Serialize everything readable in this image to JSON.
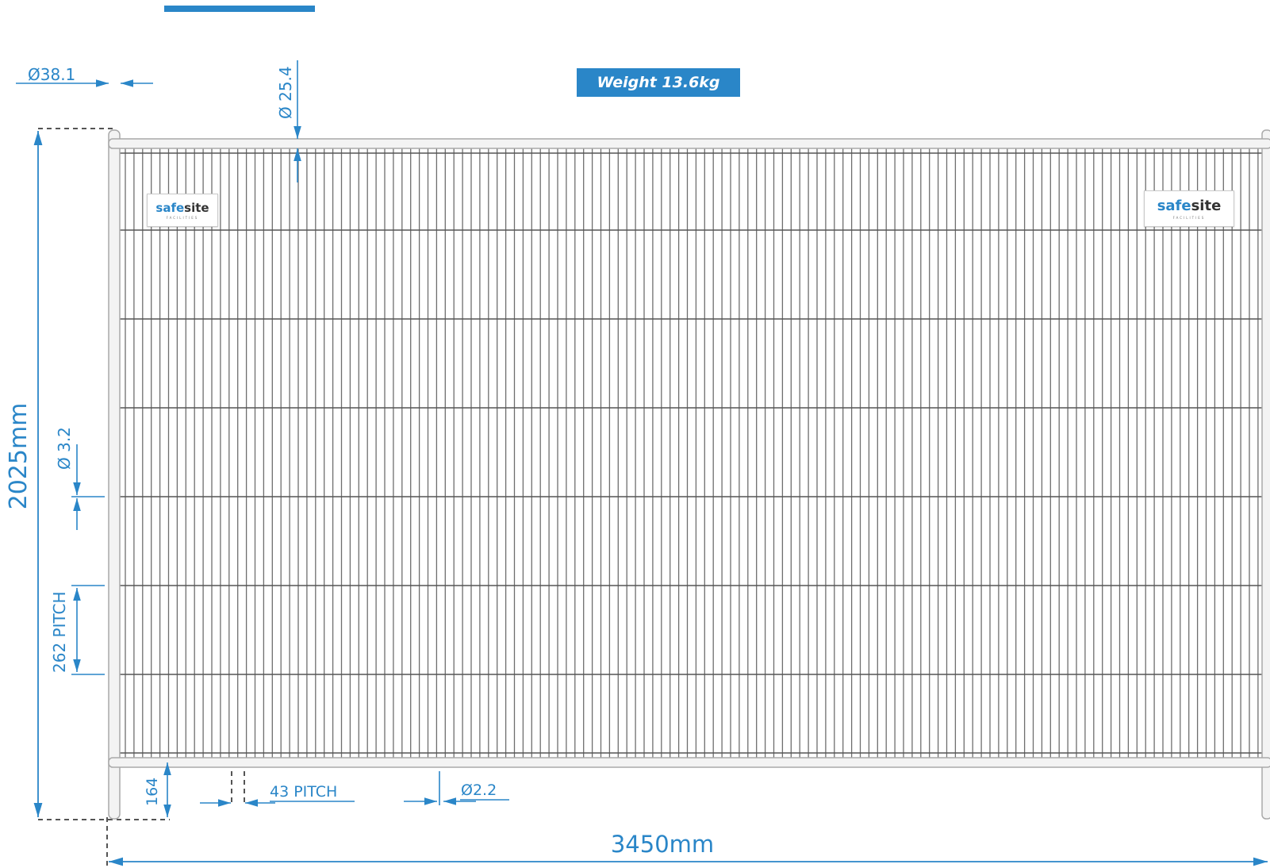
{
  "weight_label": "Weight 13.6kg",
  "logos": [
    {
      "name": "safesite",
      "brand_part_1": "safe",
      "brand_part_2": "site",
      "subline": "FACILITIES"
    },
    {
      "name": "safesite",
      "brand_part_1": "safe",
      "brand_part_2": "site",
      "subline": "FACILITIES"
    }
  ],
  "dimensions": {
    "overall_height": "2025mm",
    "overall_width": "3450mm",
    "post_diameter": "Ø38.1",
    "top_rail_diameter": "Ø 25.4",
    "horizontal_wire_diameter": "Ø 3.2",
    "horizontal_wire_pitch": "262 PITCH",
    "bottom_clearance": "164",
    "vertical_wire_pitch": "43 PITCH",
    "vertical_wire_diameter": "Ø2.2"
  },
  "colors": {
    "accent": "#2a86c8",
    "frame": "#bfbfbf",
    "mesh_wire": "#6e6e6e"
  }
}
